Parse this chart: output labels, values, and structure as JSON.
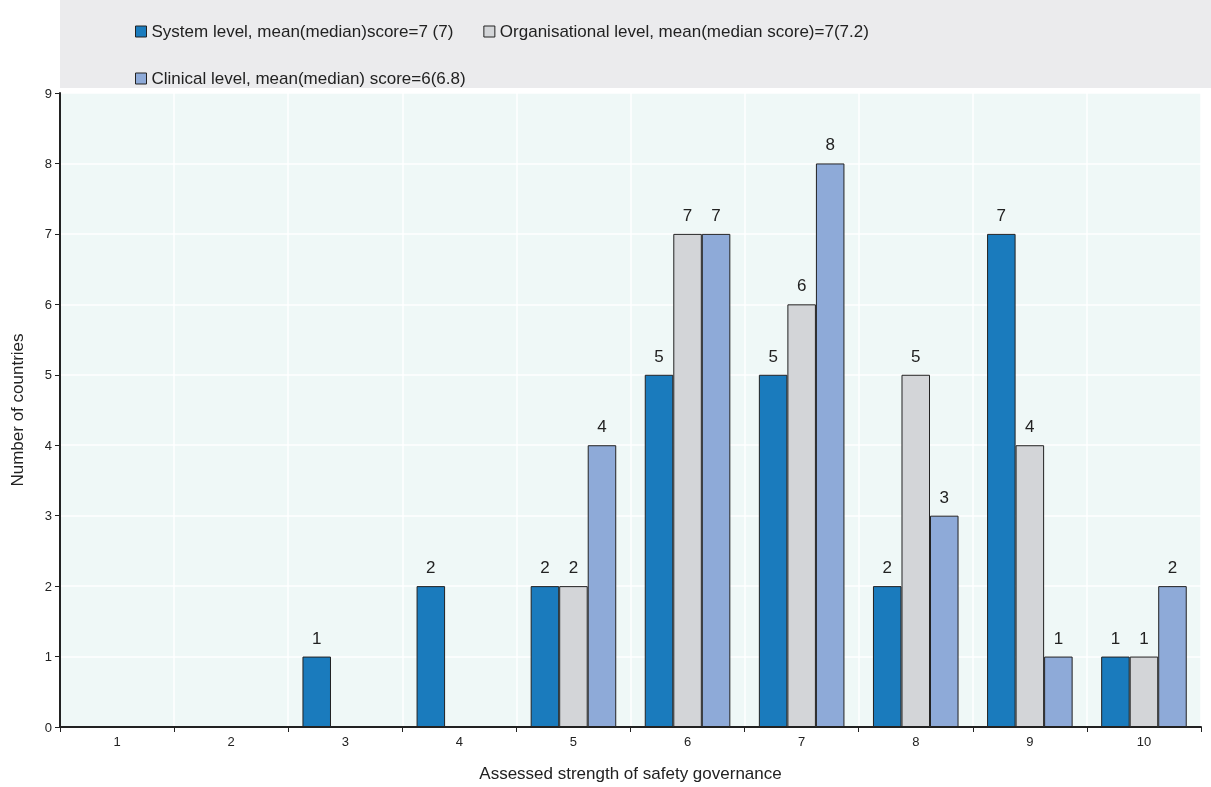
{
  "chart_data": {
    "type": "bar",
    "xlabel": "Assessed strength of safety governance",
    "ylabel": "Number of countries",
    "categories": [
      "1",
      "2",
      "3",
      "4",
      "5",
      "6",
      "7",
      "8",
      "9",
      "10"
    ],
    "series": [
      {
        "name": "System level, mean(median)score=7 (7)",
        "color": "#1a7bbd",
        "values": [
          0,
          0,
          1,
          2,
          2,
          5,
          5,
          2,
          7,
          1
        ],
        "value_labels": [
          null,
          null,
          "1",
          "2",
          "2",
          "5",
          "5",
          "2",
          "7",
          "1"
        ]
      },
      {
        "name": "Organisational level, mean(median score)=7(7.2)",
        "color": "#d3d5d8",
        "values": [
          0,
          0,
          0,
          0,
          2,
          7,
          6,
          5,
          4,
          1
        ],
        "value_labels": [
          null,
          null,
          null,
          null,
          "2",
          "7",
          "6",
          "5",
          "4",
          "1"
        ]
      },
      {
        "name": "Clinical level, mean(median) score=6(6.8)",
        "color": "#8eaad8",
        "values": [
          0,
          0,
          0,
          0,
          4,
          7,
          8,
          3,
          1,
          2
        ],
        "value_labels": [
          null,
          null,
          null,
          null,
          "4",
          "7",
          "8",
          "3",
          "1",
          "2"
        ]
      }
    ],
    "ylim": [
      0,
      9
    ],
    "yticks": [
      0,
      1,
      2,
      3,
      4,
      5,
      6,
      7,
      8,
      9
    ],
    "grid": true,
    "legend": "top"
  }
}
